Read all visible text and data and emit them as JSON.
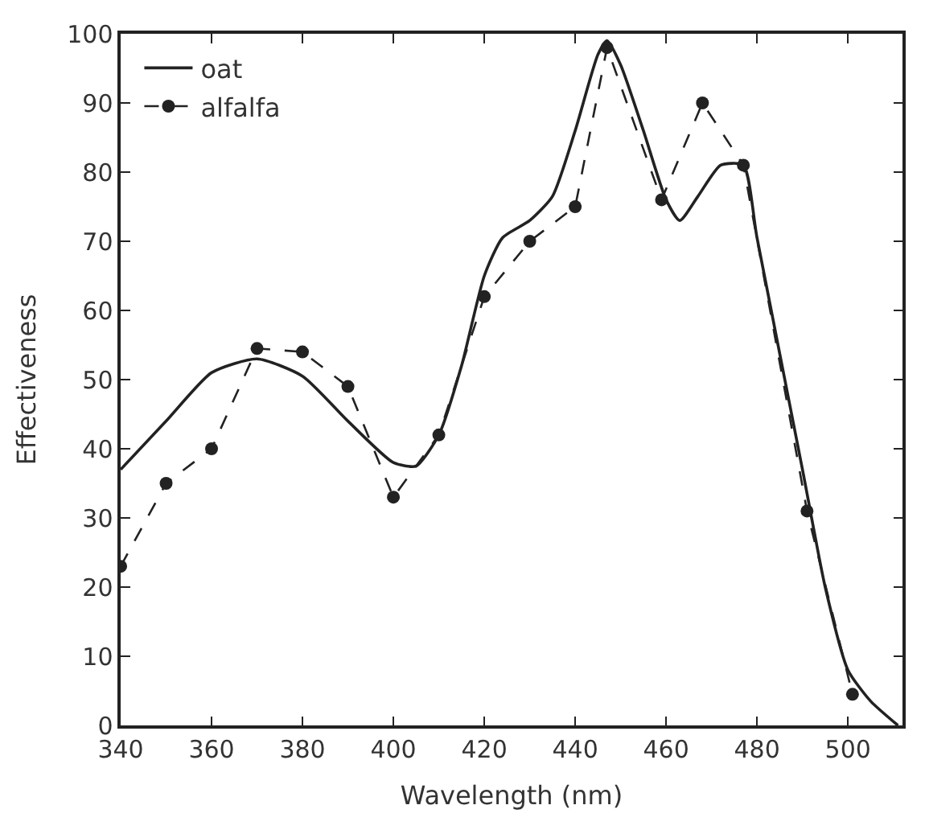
{
  "chart_data": {
    "type": "line",
    "xlabel": "Wavelength (nm)",
    "ylabel": "Effectiveness",
    "xlim": [
      340,
      512
    ],
    "xticks": [
      340,
      360,
      380,
      400,
      420,
      440,
      460,
      480,
      500
    ],
    "ylim": [
      0,
      100
    ],
    "yticks": [
      0,
      10,
      20,
      30,
      40,
      50,
      60,
      70,
      80,
      90,
      100
    ],
    "legend": "top left",
    "series": [
      {
        "name": "oat",
        "color": "#222222",
        "line_style": "solid",
        "marker": "none",
        "x": [
          340,
          350,
          360,
          370,
          380,
          390,
          400,
          405,
          410,
          415,
          420,
          424,
          430,
          435,
          440,
          445,
          447,
          450,
          455,
          460,
          463,
          467,
          472,
          477,
          480,
          490,
          495,
          500,
          505,
          511
        ],
        "values": [
          37,
          44,
          51,
          53,
          50.5,
          44,
          38,
          37.5,
          42,
          52,
          65,
          70.5,
          73,
          76.5,
          86,
          97,
          99,
          95.5,
          86,
          76,
          73,
          76.5,
          81,
          81,
          70.5,
          37,
          20,
          8,
          3.5,
          0
        ]
      },
      {
        "name": "alfalfa",
        "color": "#222222",
        "line_style": "dashed",
        "marker": "circle",
        "x": [
          340,
          350,
          360,
          370,
          380,
          390,
          400,
          410,
          420,
          430,
          440,
          447,
          459,
          468,
          477,
          491,
          501
        ],
        "values": [
          23,
          35,
          40,
          54.5,
          54,
          49,
          33,
          42,
          62,
          70,
          75,
          98,
          76,
          90,
          81,
          31,
          4.5
        ]
      }
    ]
  }
}
